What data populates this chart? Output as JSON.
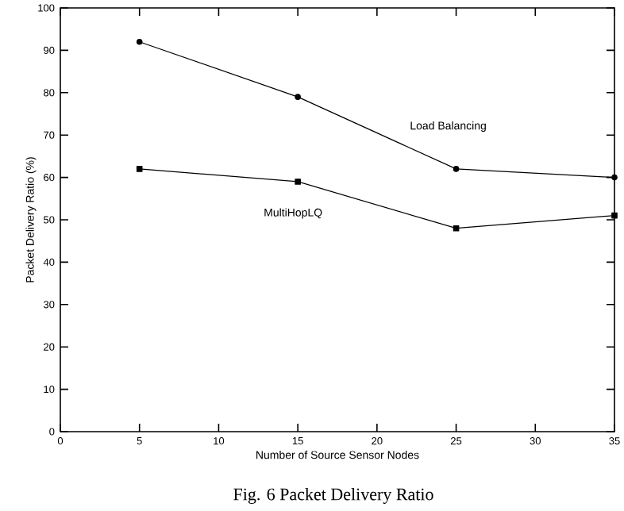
{
  "chart_data": {
    "type": "line",
    "x": [
      5,
      15,
      25,
      35
    ],
    "series": [
      {
        "name": "Load Balancing",
        "color": "#000000",
        "marker": "circle",
        "values": [
          92,
          79,
          62,
          60
        ]
      },
      {
        "name": "MultiHopLQ",
        "color": "#000000",
        "marker": "square",
        "values": [
          62,
          59,
          48,
          51
        ]
      }
    ],
    "xlabel": "Number of Source Sensor Nodes",
    "ylabel": "Packet Delivery Ratio (%)",
    "xlim": [
      0,
      35
    ],
    "xticks": [
      0,
      5,
      10,
      15,
      20,
      25,
      30,
      35
    ],
    "ylim": [
      0,
      100
    ],
    "yticks": [
      0,
      10,
      20,
      30,
      40,
      50,
      60,
      70,
      80,
      90,
      100
    ],
    "grid": false,
    "annotations": [
      "Fig. 6 Packet Delivery Ratio"
    ]
  }
}
